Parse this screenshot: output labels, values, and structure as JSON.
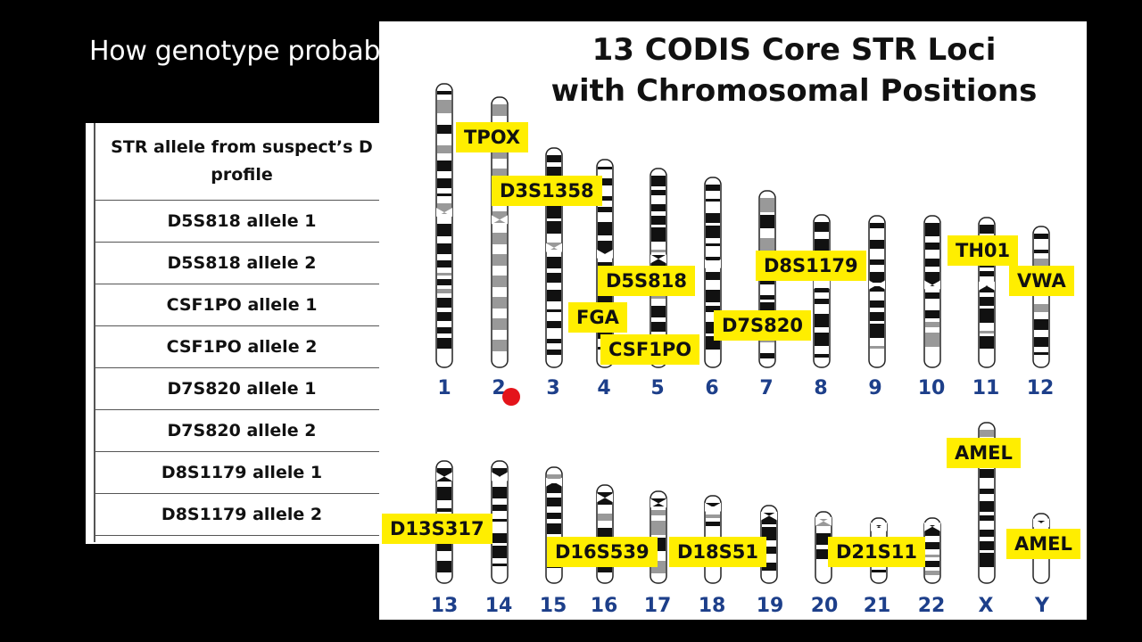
{
  "slide": {
    "title": "How genotype probab"
  },
  "table": {
    "header": "STR allele from suspect’s D profile",
    "rows": [
      "D5S818 allele 1",
      "D5S818 allele 2",
      "CSF1PO allele 1",
      "CSF1PO allele 2",
      "D7S820 allele 1",
      "D7S820 allele 2",
      "D8S1179 allele 1",
      "D8S1179 allele 2"
    ]
  },
  "figure": {
    "title_line1": "13 CODIS Core STR Loci",
    "title_line2": "with Chromosomal Positions",
    "chromosomes_row1": [
      "1",
      "2",
      "3",
      "4",
      "5",
      "6",
      "7",
      "8",
      "9",
      "10",
      "11",
      "12"
    ],
    "chromosomes_row2": [
      "13",
      "14",
      "15",
      "16",
      "17",
      "18",
      "19",
      "20",
      "21",
      "22",
      "X",
      "Y"
    ],
    "loci": {
      "tpox": "TPOX",
      "d3s1358": "D3S1358",
      "d5s818": "D5S818",
      "fga": "FGA",
      "csf1po": "CSF1PO",
      "d7s820": "D7S820",
      "d8s1179": "D8S1179",
      "th01": "TH01",
      "vwa": "VWA",
      "amel_x": "AMEL",
      "amel_y": "AMEL",
      "d13s317": "D13S317",
      "d16s539": "D16S539",
      "d18s51": "D18S51",
      "d21s11": "D21S11"
    },
    "colors": {
      "label_highlight": "#ffee00",
      "chromosome_number": "#1d3f8a",
      "pointer": "#e4141b"
    }
  }
}
